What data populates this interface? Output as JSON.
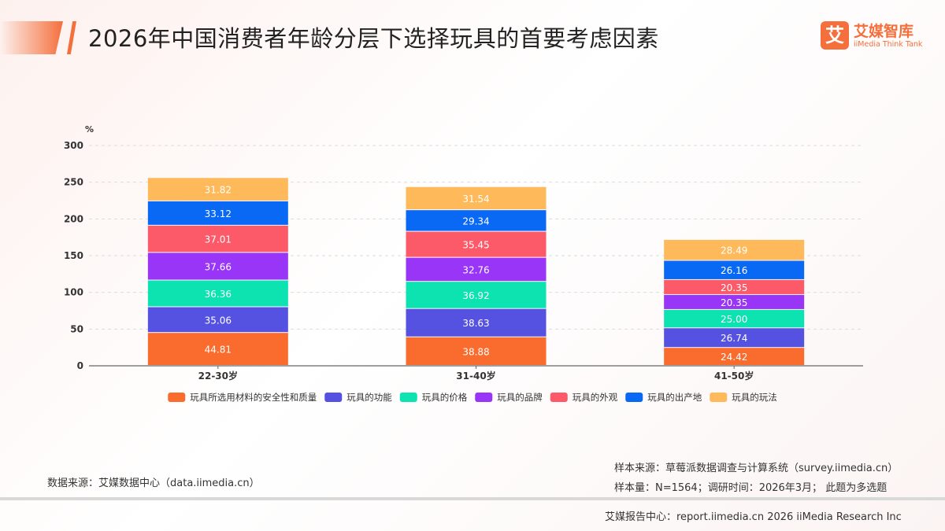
{
  "header": {
    "title": "2026年中国消费者年龄分层下选择玩具的首要考虑因素",
    "logo_mark": "艾",
    "logo_cn": "艾媒智库",
    "logo_en": "iiMedia Think Tank"
  },
  "chart_data": {
    "type": "bar",
    "stacked": true,
    "ylabel": "%",
    "ylim": [
      0,
      300
    ],
    "yticks": [
      0,
      50,
      100,
      150,
      200,
      250,
      300
    ],
    "grid": true,
    "legend_position": "bottom",
    "categories": [
      "22-30岁",
      "31-40岁",
      "41-50岁"
    ],
    "series": [
      {
        "name": "玩具所选用材料的安全性和质量",
        "color": "#fa6c2e",
        "values": [
          44.81,
          38.88,
          24.42
        ]
      },
      {
        "name": "玩具的功能",
        "color": "#5552e2",
        "values": [
          35.06,
          38.63,
          26.74
        ]
      },
      {
        "name": "玩具的价格",
        "color": "#0de2b1",
        "values": [
          36.36,
          36.92,
          25.0
        ]
      },
      {
        "name": "玩具的品牌",
        "color": "#9935f6",
        "values": [
          37.66,
          32.76,
          20.35
        ]
      },
      {
        "name": "玩具的外观",
        "color": "#fc5a68",
        "values": [
          37.01,
          35.45,
          20.35
        ]
      },
      {
        "name": "玩具的出产地",
        "color": "#0969f5",
        "values": [
          33.12,
          29.34,
          26.16
        ]
      },
      {
        "name": "玩具的玩法",
        "color": "#feb95a",
        "values": [
          31.82,
          31.54,
          28.49
        ]
      }
    ]
  },
  "footer": {
    "source": "数据来源：艾媒数据中心（data.iimedia.cn）",
    "sample_source": "样本来源：草莓派数据调查与计算系统（survey.iimedia.cn）",
    "sample_size": "样本量：N=1564；调研时间：2026年3月；  此题为多选题",
    "report_center": "艾媒报告中心：report.iimedia.cn   2026 iiMedia Research Inc"
  }
}
